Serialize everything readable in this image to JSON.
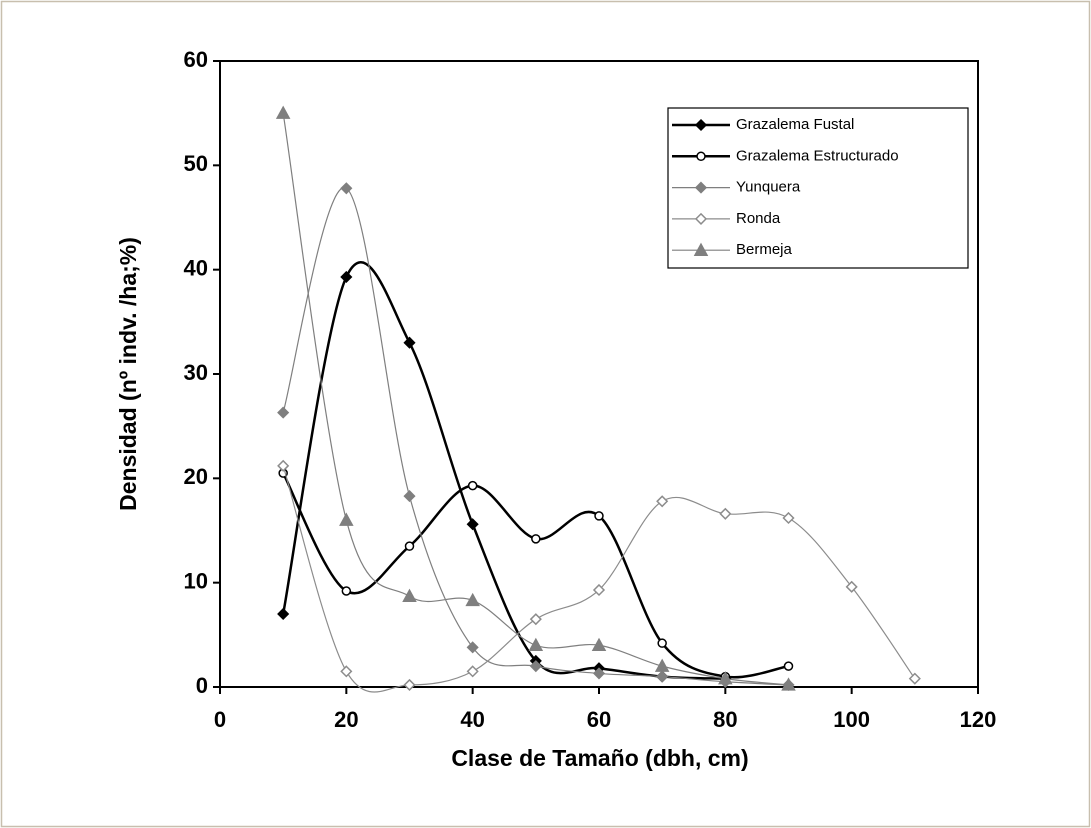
{
  "chart_data": {
    "type": "line",
    "x_label": "Clase de Tamaño (dbh, cm)",
    "y_label": "Densidad (nº indv. /ha;%)",
    "x": [
      10,
      20,
      30,
      40,
      50,
      60,
      70,
      80,
      90,
      100,
      110
    ],
    "series": [
      {
        "name": "Grazalema Fustal",
        "color": "#000000",
        "marker": "diamond",
        "filled": true,
        "line_width": 2.5,
        "values": [
          7,
          39.3,
          33,
          15.6,
          2.5,
          1.8,
          1,
          0.8,
          null,
          null,
          null
        ]
      },
      {
        "name": "Grazalema Estructurado",
        "color": "#000000",
        "marker": "circle",
        "filled": false,
        "line_width": 2.5,
        "values": [
          20.5,
          9.2,
          13.5,
          19.3,
          14.2,
          16.4,
          4.2,
          1,
          2,
          null,
          null
        ]
      },
      {
        "name": "Yunquera",
        "color": "#7f7f7f",
        "marker": "diamond",
        "filled": true,
        "line_width": 1.2,
        "values": [
          26.3,
          47.8,
          18.3,
          3.8,
          2,
          1.3,
          1,
          0.5,
          0.2,
          null,
          null
        ]
      },
      {
        "name": "Ronda",
        "color": "#8c8c8c",
        "marker": "diamond",
        "filled": false,
        "line_width": 1.2,
        "values": [
          21.2,
          1.5,
          0.2,
          1.5,
          6.5,
          9.3,
          17.8,
          16.6,
          16.2,
          9.6,
          0.8
        ]
      },
      {
        "name": "Bermeja",
        "color": "#7f7f7f",
        "marker": "triangle",
        "filled": true,
        "line_width": 1.2,
        "values": [
          55,
          16,
          8.7,
          8.3,
          4,
          4,
          2,
          0.8,
          0.2,
          null,
          null
        ]
      }
    ],
    "xlim": [
      0,
      120
    ],
    "xticks": [
      0,
      20,
      40,
      60,
      80,
      100,
      120
    ],
    "ylim": [
      0,
      60
    ],
    "yticks": [
      0,
      10,
      20,
      30,
      40,
      50,
      60
    ],
    "grid": false,
    "smooth": true,
    "legend": "upper right"
  }
}
